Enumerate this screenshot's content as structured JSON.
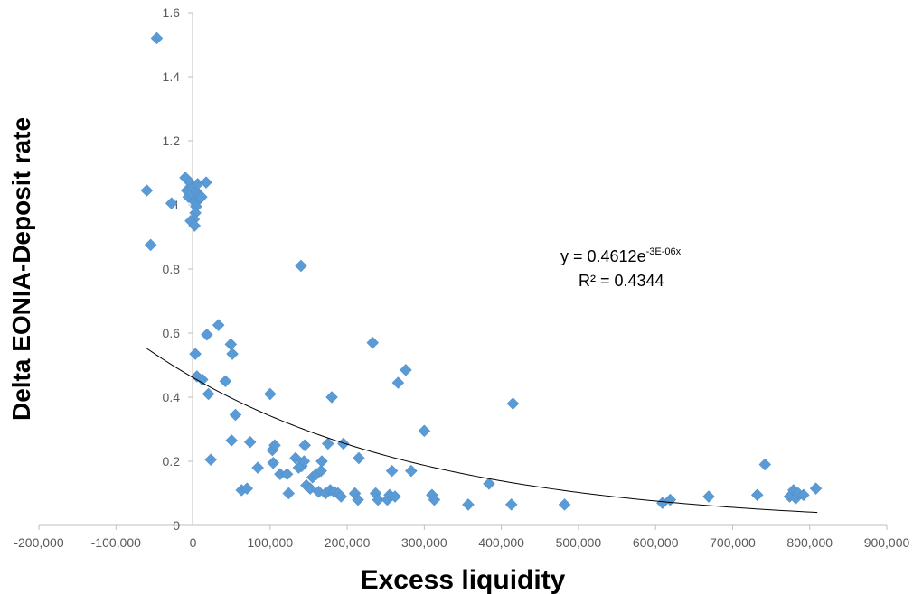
{
  "chart_data": {
    "type": "scatter",
    "title": "",
    "xlabel": "Excess liquidity",
    "ylabel": "Delta EONIA-Deposit rate",
    "xlim": [
      -200000,
      900000
    ],
    "ylim": [
      0,
      1.6
    ],
    "x_ticks": [
      "-200,000",
      "-100,000",
      "0",
      "100,000",
      "200,000",
      "300,000",
      "400,000",
      "500,000",
      "600,000",
      "700,000",
      "800,000",
      "900,000"
    ],
    "y_ticks": [
      "0",
      "0.2",
      "0.4",
      "0.6",
      "0.8",
      "1",
      "1.2",
      "1.4",
      "1.6"
    ],
    "grid": false,
    "marker": "diamond",
    "marker_color": "#5b9bd5",
    "trendline": {
      "type": "exponential",
      "a": 0.4612,
      "b": -3e-06,
      "x_range": [
        -60000,
        810000
      ],
      "equation_main": "y = 0.4612e",
      "equation_exp": "-3E-06x",
      "r2_label": "R² = 0.4344",
      "color": "#000000"
    },
    "points": [
      [
        -47000,
        1.52
      ],
      [
        -60000,
        1.045
      ],
      [
        -55000,
        0.875
      ],
      [
        -28000,
        1.005
      ],
      [
        -10000,
        1.085
      ],
      [
        -8000,
        1.045
      ],
      [
        -6000,
        1.025
      ],
      [
        -4000,
        1.07
      ],
      [
        -2000,
        1.035
      ],
      [
        0,
        1.055
      ],
      [
        2000,
        1.01
      ],
      [
        4000,
        0.995
      ],
      [
        5000,
        1.04
      ],
      [
        6000,
        1.065
      ],
      [
        8000,
        1.03
      ],
      [
        9000,
        1.02
      ],
      [
        11000,
        1.025
      ],
      [
        3000,
        0.975
      ],
      [
        1000,
        0.955
      ],
      [
        -3000,
        0.95
      ],
      [
        2000,
        0.935
      ],
      [
        17000,
        1.07
      ],
      [
        3000,
        0.535
      ],
      [
        5000,
        0.465
      ],
      [
        12000,
        0.455
      ],
      [
        18000,
        0.595
      ],
      [
        20000,
        0.41
      ],
      [
        23000,
        0.205
      ],
      [
        33000,
        0.625
      ],
      [
        42000,
        0.45
      ],
      [
        49000,
        0.565
      ],
      [
        51000,
        0.535
      ],
      [
        50000,
        0.265
      ],
      [
        55000,
        0.345
      ],
      [
        63000,
        0.11
      ],
      [
        70000,
        0.115
      ],
      [
        74000,
        0.26
      ],
      [
        84000,
        0.18
      ],
      [
        100000,
        0.41
      ],
      [
        103000,
        0.235
      ],
      [
        104000,
        0.195
      ],
      [
        106000,
        0.25
      ],
      [
        113000,
        0.16
      ],
      [
        122000,
        0.16
      ],
      [
        124000,
        0.1
      ],
      [
        133000,
        0.21
      ],
      [
        137000,
        0.18
      ],
      [
        140000,
        0.81
      ],
      [
        141000,
        0.185
      ],
      [
        144000,
        0.2
      ],
      [
        145000,
        0.25
      ],
      [
        147000,
        0.125
      ],
      [
        152000,
        0.115
      ],
      [
        155000,
        0.15
      ],
      [
        160000,
        0.16
      ],
      [
        163000,
        0.105
      ],
      [
        166000,
        0.17
      ],
      [
        167000,
        0.2
      ],
      [
        172000,
        0.1
      ],
      [
        175000,
        0.255
      ],
      [
        178000,
        0.11
      ],
      [
        180000,
        0.4
      ],
      [
        183000,
        0.105
      ],
      [
        188000,
        0.1
      ],
      [
        192000,
        0.09
      ],
      [
        195000,
        0.255
      ],
      [
        210000,
        0.1
      ],
      [
        214000,
        0.08
      ],
      [
        215000,
        0.21
      ],
      [
        233000,
        0.57
      ],
      [
        237000,
        0.1
      ],
      [
        240000,
        0.08
      ],
      [
        252000,
        0.08
      ],
      [
        255000,
        0.095
      ],
      [
        258000,
        0.17
      ],
      [
        262000,
        0.09
      ],
      [
        266000,
        0.445
      ],
      [
        276000,
        0.485
      ],
      [
        283000,
        0.17
      ],
      [
        300000,
        0.295
      ],
      [
        310000,
        0.095
      ],
      [
        313000,
        0.08
      ],
      [
        357000,
        0.065
      ],
      [
        384000,
        0.13
      ],
      [
        413000,
        0.065
      ],
      [
        415000,
        0.38
      ],
      [
        482000,
        0.065
      ],
      [
        609000,
        0.07
      ],
      [
        619000,
        0.08
      ],
      [
        669000,
        0.09
      ],
      [
        732000,
        0.095
      ],
      [
        742000,
        0.19
      ],
      [
        774000,
        0.09
      ],
      [
        779000,
        0.11
      ],
      [
        782000,
        0.085
      ],
      [
        785000,
        0.1
      ],
      [
        792000,
        0.095
      ],
      [
        808000,
        0.115
      ]
    ]
  }
}
